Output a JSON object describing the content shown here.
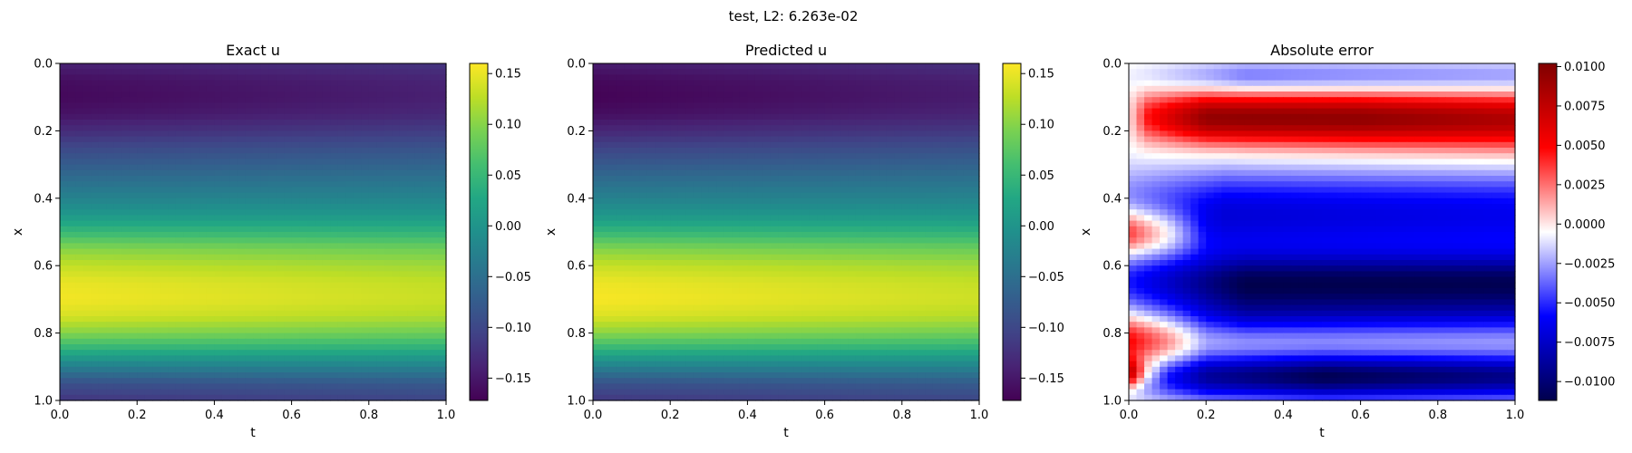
{
  "figure": {
    "suptitle": "test, L2: 6.263e-02"
  },
  "chart_data": [
    {
      "type": "heatmap",
      "title": "Exact u",
      "xlabel": "t",
      "ylabel": "x",
      "x_range": [
        0.0,
        1.0
      ],
      "y_range": [
        0.0,
        1.0
      ],
      "y_inverted": true,
      "x_ticks": [
        "0.0",
        "0.2",
        "0.4",
        "0.6",
        "0.8",
        "1.0"
      ],
      "y_ticks": [
        "0.0",
        "0.2",
        "0.4",
        "0.6",
        "0.8",
        "1.0"
      ],
      "colormap": "viridis",
      "colorbar": {
        "vmin": -0.172,
        "vmax": 0.16,
        "ticks": [
          "−0.15",
          "−0.10",
          "−0.05",
          "0.00",
          "0.05",
          "0.10",
          "0.15"
        ],
        "tick_values": [
          -0.15,
          -0.1,
          -0.05,
          0.0,
          0.05,
          0.1,
          0.15
        ]
      },
      "profile_x": [
        0.0,
        0.05,
        0.1,
        0.15,
        0.2,
        0.25,
        0.3,
        0.35,
        0.4,
        0.45,
        0.5,
        0.55,
        0.6,
        0.65,
        0.7,
        0.75,
        0.8,
        0.85,
        0.9,
        0.95,
        1.0
      ],
      "profile_u": [
        -0.14,
        -0.16,
        -0.165,
        -0.155,
        -0.13,
        -0.1,
        -0.075,
        -0.05,
        -0.025,
        0.005,
        0.05,
        0.1,
        0.13,
        0.15,
        0.155,
        0.14,
        0.1,
        0.04,
        -0.03,
        -0.09,
        -0.12
      ],
      "time_decay": 0.14
    },
    {
      "type": "heatmap",
      "title": "Predicted u",
      "xlabel": "t",
      "ylabel": "x",
      "x_range": [
        0.0,
        1.0
      ],
      "y_range": [
        0.0,
        1.0
      ],
      "y_inverted": true,
      "x_ticks": [
        "0.0",
        "0.2",
        "0.4",
        "0.6",
        "0.8",
        "1.0"
      ],
      "y_ticks": [
        "0.0",
        "0.2",
        "0.4",
        "0.6",
        "0.8",
        "1.0"
      ],
      "colormap": "viridis",
      "colorbar": {
        "vmin": -0.172,
        "vmax": 0.16,
        "ticks": [
          "−0.15",
          "−0.10",
          "−0.05",
          "0.00",
          "0.05",
          "0.10",
          "0.15"
        ],
        "tick_values": [
          -0.15,
          -0.1,
          -0.05,
          0.0,
          0.05,
          0.1,
          0.15
        ]
      },
      "profile_x": [
        0.0,
        0.05,
        0.1,
        0.15,
        0.2,
        0.25,
        0.3,
        0.35,
        0.4,
        0.45,
        0.5,
        0.55,
        0.6,
        0.65,
        0.7,
        0.75,
        0.8,
        0.85,
        0.9,
        0.95,
        1.0
      ],
      "profile_u": [
        -0.145,
        -0.165,
        -0.17,
        -0.16,
        -0.135,
        -0.105,
        -0.078,
        -0.052,
        -0.027,
        0.003,
        0.048,
        0.098,
        0.132,
        0.152,
        0.158,
        0.143,
        0.103,
        0.042,
        -0.028,
        -0.088,
        -0.118
      ],
      "time_decay": 0.14
    },
    {
      "type": "heatmap",
      "title": "Absolute error",
      "xlabel": "t",
      "ylabel": "x",
      "x_range": [
        0.0,
        1.0
      ],
      "y_range": [
        0.0,
        1.0
      ],
      "y_inverted": true,
      "x_ticks": [
        "0.0",
        "0.2",
        "0.4",
        "0.6",
        "0.8",
        "1.0"
      ],
      "y_ticks": [
        "0.0",
        "0.2",
        "0.4",
        "0.6",
        "0.8",
        "1.0"
      ],
      "colormap": "seismic",
      "colorbar": {
        "vmin": -0.0112,
        "vmax": 0.0102,
        "ticks": [
          "−0.0100",
          "−0.0075",
          "−0.0050",
          "−0.0025",
          "0.0000",
          "0.0025",
          "0.0050",
          "0.0075",
          "0.0100"
        ],
        "tick_values": [
          -0.01,
          -0.0075,
          -0.005,
          -0.0025,
          0.0,
          0.0025,
          0.005,
          0.0075,
          0.01
        ]
      },
      "error_bands": [
        {
          "x": 0.16,
          "width": 0.05,
          "amp": 0.009,
          "t_profile": [
            [
              0.0,
              0.0
            ],
            [
              0.05,
              0.5
            ],
            [
              0.2,
              1.0
            ],
            [
              0.6,
              0.95
            ],
            [
              1.0,
              0.75
            ]
          ]
        },
        {
          "x": 0.22,
          "width": 0.06,
          "amp": 0.003,
          "t_profile": [
            [
              0.0,
              0.0
            ],
            [
              0.3,
              0.4
            ],
            [
              1.0,
              0.8
            ]
          ]
        },
        {
          "x": 0.04,
          "width": 0.035,
          "amp": -0.004,
          "t_profile": [
            [
              0.0,
              0.2
            ],
            [
              0.3,
              0.9
            ],
            [
              1.0,
              0.7
            ]
          ]
        },
        {
          "x": 0.45,
          "width": 0.1,
          "amp": -0.007,
          "t_profile": [
            [
              0.0,
              0.6
            ],
            [
              0.25,
              1.0
            ],
            [
              1.0,
              0.9
            ]
          ]
        },
        {
          "x": 0.65,
          "width": 0.06,
          "amp": -0.0095,
          "t_profile": [
            [
              0.0,
              0.5
            ],
            [
              0.3,
              1.0
            ],
            [
              1.0,
              1.0
            ]
          ]
        },
        {
          "x": 0.75,
          "width": 0.05,
          "amp": -0.006,
          "t_profile": [
            [
              0.0,
              0.3
            ],
            [
              0.3,
              0.9
            ],
            [
              1.0,
              0.8
            ]
          ]
        },
        {
          "x": 0.93,
          "width": 0.05,
          "amp": -0.011,
          "t_profile": [
            [
              0.0,
              0.3
            ],
            [
              0.2,
              0.8
            ],
            [
              0.5,
              1.0
            ],
            [
              1.0,
              0.85
            ]
          ]
        },
        {
          "x": 0.5,
          "width": 0.05,
          "amp": 0.0075,
          "t_profile": [
            [
              0.0,
              1.0
            ],
            [
              0.1,
              0.6
            ],
            [
              0.2,
              0.0
            ],
            [
              1.0,
              0.0
            ]
          ]
        },
        {
          "x": 0.82,
          "width": 0.06,
          "amp": 0.006,
          "t_profile": [
            [
              0.0,
              1.0
            ],
            [
              0.1,
              0.6
            ],
            [
              0.2,
              0.0
            ],
            [
              1.0,
              0.0
            ]
          ]
        },
        {
          "x": 0.92,
          "width": 0.03,
          "amp": 0.01,
          "t_profile": [
            [
              0.0,
              1.0
            ],
            [
              0.05,
              0.3
            ],
            [
              0.1,
              0.0
            ],
            [
              1.0,
              0.0
            ]
          ]
        }
      ]
    }
  ]
}
